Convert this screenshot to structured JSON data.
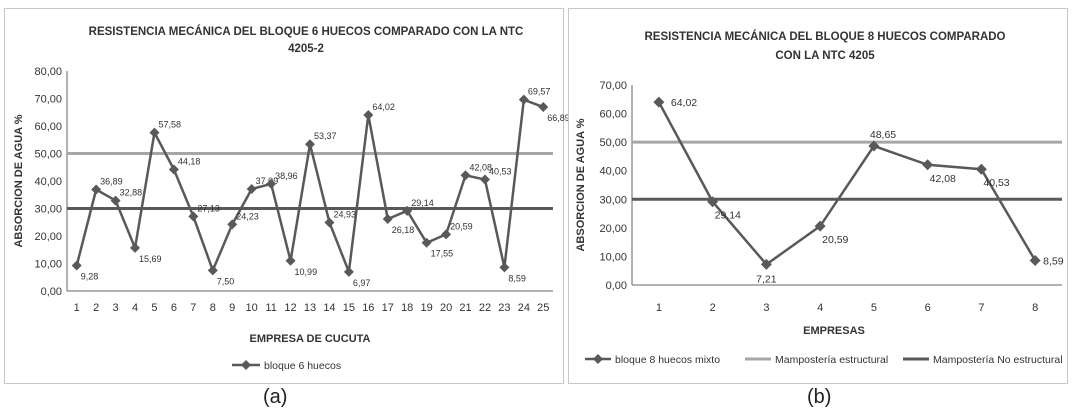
{
  "captions": {
    "a": "(a)",
    "b": "(b)"
  },
  "colors": {
    "series": "#595959",
    "structural": "#a6a6a6",
    "non_structural": "#595959",
    "axis": "#666666"
  },
  "chart_data": [
    {
      "type": "line",
      "title_line1": "RESISTENCIA MECÁNICA DEL BLOQUE 6 HUECOS COMPARADO CON LA NTC",
      "title_line2": "4205-2",
      "xlabel": "EMPRESA DE CUCUTA",
      "ylabel": "ABSORCION DE AGUA %",
      "ylim": [
        0,
        80
      ],
      "yticks": [
        "0,00",
        "10,00",
        "20,00",
        "30,00",
        "40,00",
        "50,00",
        "60,00",
        "70,00",
        "80,00"
      ],
      "categories": [
        "1",
        "2",
        "3",
        "4",
        "5",
        "6",
        "7",
        "8",
        "9",
        "10",
        "11",
        "12",
        "13",
        "14",
        "15",
        "16",
        "17",
        "18",
        "19",
        "20",
        "21",
        "22",
        "23",
        "24",
        "25"
      ],
      "series": [
        {
          "name": "bloque 6 huecos",
          "values": [
            9.28,
            36.89,
            32.88,
            15.69,
            57.58,
            44.18,
            27.13,
            7.5,
            24.23,
            37.09,
            38.96,
            10.99,
            53.37,
            24.93,
            6.97,
            64.02,
            26.18,
            29.14,
            17.55,
            20.59,
            42.08,
            40.53,
            8.59,
            69.57,
            66.89
          ],
          "labels": [
            "9,28",
            "36,89",
            "32,88",
            "15,69",
            "57,58",
            "44,18",
            "27,13",
            "7,50",
            "24,23",
            "37,09",
            "38,96",
            "10,99",
            "53,37",
            "24,93",
            "6,97",
            "64,02",
            "26,18",
            "29,14",
            "17,55",
            "20,59",
            "42,08",
            "40,53",
            "8,59",
            "69,57",
            "66,89"
          ]
        }
      ],
      "reference_lines": [
        {
          "value": 50
        },
        {
          "value": 30
        }
      ],
      "legend": [
        "bloque 6 huecos"
      ],
      "legend_position": "bottom",
      "grid": false
    },
    {
      "type": "line",
      "title_line1": "RESISTENCIA MECÁNICA DEL BLOQUE 8 HUECOS COMPARADO",
      "title_line2": "CON LA NTC 4205",
      "xlabel": "EMPRESAS",
      "ylabel": "ABSORCION DE AGUA %",
      "ylim": [
        0,
        70
      ],
      "yticks": [
        "0,00",
        "10,00",
        "20,00",
        "30,00",
        "40,00",
        "50,00",
        "60,00",
        "70,00"
      ],
      "categories": [
        "1",
        "2",
        "3",
        "4",
        "5",
        "6",
        "7",
        "8"
      ],
      "series": [
        {
          "name": "bloque 8 huecos mixto",
          "values": [
            64.02,
            29.14,
            7.21,
            20.59,
            48.65,
            42.08,
            40.53,
            8.59
          ],
          "labels": [
            "64,02",
            "29,14",
            "7,21",
            "20,59",
            "48,65",
            "42,08",
            "40,53",
            "8,59"
          ]
        },
        {
          "name": "Mampostería estructural",
          "values": [
            50,
            50,
            50,
            50,
            50,
            50,
            50,
            50
          ]
        },
        {
          "name": "Mampostería No estructural",
          "values": [
            30,
            30,
            30,
            30,
            30,
            30,
            30,
            30
          ]
        }
      ],
      "legend": [
        "bloque 8 huecos mixto",
        "Mampostería estructural",
        "Mampostería No estructural"
      ],
      "legend_position": "bottom",
      "grid": false
    }
  ]
}
